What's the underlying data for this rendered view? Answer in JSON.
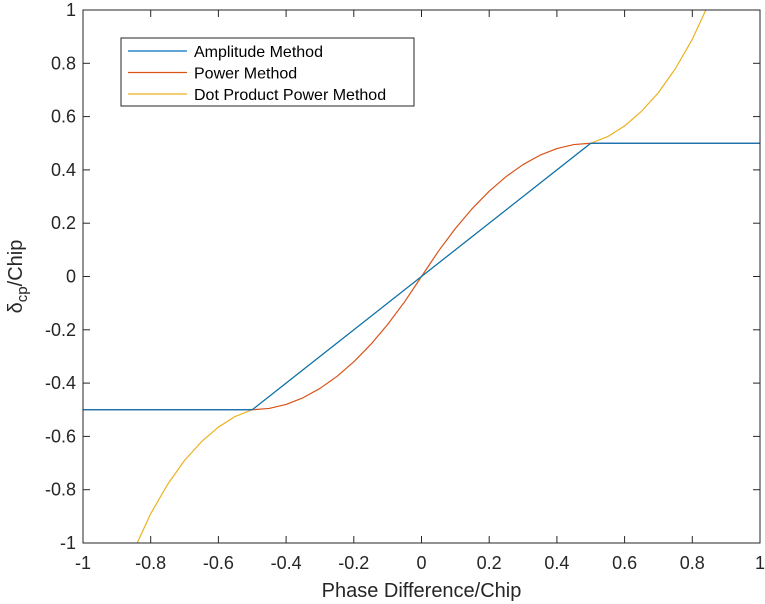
{
  "chart_data": {
    "type": "line",
    "title": "",
    "xlabel": "Phase Difference/Chip",
    "ylabel_main": "δ",
    "ylabel_sub": "cp",
    "ylabel_rest": "/Chip",
    "xlim": [
      -1,
      1
    ],
    "ylim": [
      -1,
      1
    ],
    "xticks": [
      -1,
      -0.8,
      -0.6,
      -0.4,
      -0.2,
      0,
      0.2,
      0.4,
      0.6,
      0.8,
      1
    ],
    "yticks": [
      -1,
      -0.8,
      -0.6,
      -0.4,
      -0.2,
      0,
      0.2,
      0.4,
      0.6,
      0.8,
      1
    ],
    "xtick_labels": [
      "-1",
      "-0.8",
      "-0.6",
      "-0.4",
      "-0.2",
      "0",
      "0.2",
      "0.4",
      "0.6",
      "0.8",
      "1"
    ],
    "ytick_labels": [
      "-1",
      "-0.8",
      "-0.6",
      "-0.4",
      "-0.2",
      "0",
      "0.2",
      "0.4",
      "0.6",
      "0.8",
      "1"
    ],
    "grid": false,
    "legend_position": "top-left",
    "series": [
      {
        "name": "Amplitude Method",
        "color": "#0072BD",
        "x": [
          -1,
          -0.5,
          0.5,
          1
        ],
        "y": [
          -0.5,
          -0.5,
          0.5,
          0.5
        ]
      },
      {
        "name": "Power Method",
        "color": "#D95319",
        "x": [
          -1,
          -0.5,
          -0.45,
          -0.4,
          -0.35,
          -0.3,
          -0.25,
          -0.2,
          -0.15,
          -0.1,
          -0.05,
          0,
          0.05,
          0.1,
          0.15,
          0.2,
          0.25,
          0.3,
          0.35,
          0.4,
          0.45,
          0.5,
          1
        ],
        "y": [
          -0.5,
          -0.5,
          -0.495,
          -0.48,
          -0.455,
          -0.42,
          -0.375,
          -0.32,
          -0.255,
          -0.18,
          -0.095,
          0,
          0.095,
          0.18,
          0.255,
          0.32,
          0.375,
          0.42,
          0.455,
          0.48,
          0.495,
          0.5,
          0.5
        ]
      },
      {
        "name": "Dot Product Power Method",
        "color": "#EDB120",
        "x": [
          -0.84,
          -0.8,
          -0.75,
          -0.7,
          -0.65,
          -0.6,
          -0.55,
          -0.5,
          -0.45,
          -0.4,
          -0.35,
          -0.3,
          -0.25,
          -0.2,
          -0.15,
          -0.1,
          -0.05,
          0,
          0.05,
          0.1,
          0.15,
          0.2,
          0.25,
          0.3,
          0.35,
          0.4,
          0.45,
          0.5,
          0.55,
          0.6,
          0.65,
          0.7,
          0.75,
          0.8,
          0.84
        ],
        "y": [
          -1.0,
          -0.89,
          -0.78,
          -0.69,
          -0.62,
          -0.565,
          -0.525,
          -0.5,
          -0.45,
          -0.4,
          -0.35,
          -0.3,
          -0.25,
          -0.2,
          -0.15,
          -0.1,
          -0.05,
          0,
          0.05,
          0.1,
          0.15,
          0.2,
          0.25,
          0.3,
          0.35,
          0.4,
          0.45,
          0.5,
          0.525,
          0.565,
          0.62,
          0.69,
          0.78,
          0.89,
          1.0
        ]
      }
    ]
  }
}
